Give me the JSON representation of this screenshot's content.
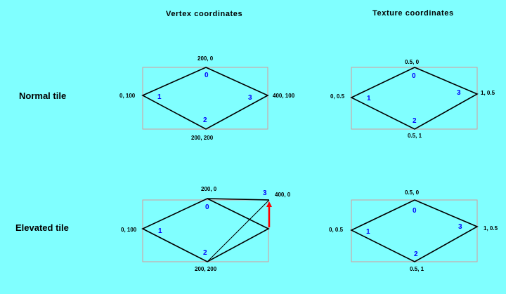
{
  "headers": {
    "vertex": "Vertex coordinates",
    "texture": "Texture coordinates"
  },
  "rows": {
    "normal": "Normal tile",
    "elevated": "Elevated tile"
  },
  "colors": {
    "background": "#80FFFF",
    "line": "#000000",
    "bbox": "#D89A9A",
    "vertex_index": "#0000FF",
    "arrow": "#FF0000"
  },
  "diagrams": {
    "normal_vertex": {
      "v0": {
        "index": "0",
        "coord": "200, 0"
      },
      "v1": {
        "index": "1",
        "coord": "0, 100"
      },
      "v2": {
        "index": "2",
        "coord": "200, 200"
      },
      "v3": {
        "index": "3",
        "coord": "400, 100"
      }
    },
    "normal_texture": {
      "v0": {
        "index": "0",
        "coord": "0.5, 0"
      },
      "v1": {
        "index": "1",
        "coord": "0, 0.5"
      },
      "v2": {
        "index": "2",
        "coord": "0.5, 1"
      },
      "v3": {
        "index": "3",
        "coord": "1, 0.5"
      }
    },
    "elevated_vertex": {
      "v0": {
        "index": "0",
        "coord": "200, 0"
      },
      "v1": {
        "index": "1",
        "coord": "0, 100"
      },
      "v2": {
        "index": "2",
        "coord": "200, 200"
      },
      "v3": {
        "index": "3",
        "coord": "400, 0"
      }
    },
    "elevated_texture": {
      "v0": {
        "index": "0",
        "coord": "0.5, 0"
      },
      "v1": {
        "index": "1",
        "coord": "0, 0.5"
      },
      "v2": {
        "index": "2",
        "coord": "0.5, 1"
      },
      "v3": {
        "index": "3",
        "coord": "1, 0.5"
      }
    }
  }
}
